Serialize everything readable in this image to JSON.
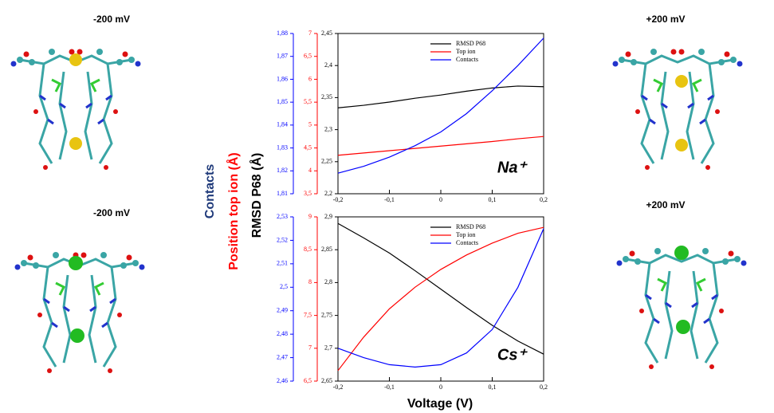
{
  "chart_data": [
    {
      "type": "line",
      "x": [
        -0.2,
        -0.15,
        -0.1,
        -0.05,
        0,
        0.05,
        0.1,
        0.15,
        0.2
      ],
      "xlim": [
        -0.2,
        0.2
      ],
      "xticks": [
        {
          "value": -0.2,
          "label": "-0,2"
        },
        {
          "value": -0.1,
          "label": "-0,1"
        },
        0,
        {
          "value": 0.1,
          "label": "0,1"
        },
        {
          "value": 0.2,
          "label": "0,2"
        }
      ],
      "ylim": [
        2.2,
        2.45
      ],
      "yticks": [
        {
          "value": 2.2,
          "label": "2,2"
        },
        {
          "value": 2.25,
          "label": "2,25"
        },
        {
          "value": 2.3,
          "label": "2,3"
        },
        {
          "value": 2.35,
          "label": "2,35"
        },
        {
          "value": 2.4,
          "label": "2,4"
        },
        {
          "value": 2.45,
          "label": "2,45"
        }
      ],
      "y2lim": [
        3.5,
        7
      ],
      "y2ticks": [
        {
          "value": 3.5,
          "label": "3,5"
        },
        4,
        {
          "value": 4.5,
          "label": "4,5"
        },
        5,
        {
          "value": 5.5,
          "label": "5,5"
        },
        6,
        {
          "value": 6.5,
          "label": "6,5"
        },
        7
      ],
      "y3lim": [
        1.81,
        1.88
      ],
      "y3ticks": [
        {
          "value": 1.81,
          "label": "1,81"
        },
        {
          "value": 1.82,
          "label": "1,82"
        },
        {
          "value": 1.83,
          "label": "1,83"
        },
        {
          "value": 1.84,
          "label": "1,84"
        },
        {
          "value": 1.85,
          "label": "1,85"
        },
        {
          "value": 1.86,
          "label": "1,86"
        },
        {
          "value": 1.87,
          "label": "1,87"
        },
        {
          "value": 1.88,
          "label": "1,88"
        }
      ],
      "annotation": "Na⁺",
      "series": [
        {
          "name": "RMSD P68",
          "color": "#000000",
          "axis": "y",
          "values": [
            2.334,
            2.338,
            2.343,
            2.349,
            2.354,
            2.36,
            2.365,
            2.368,
            2.367
          ]
        },
        {
          "name": "Top ion",
          "color": "#ff0000",
          "axis": "y2",
          "values": [
            4.34,
            4.39,
            4.44,
            4.49,
            4.54,
            4.59,
            4.64,
            4.7,
            4.75
          ]
        },
        {
          "name": "Contacts",
          "color": "#0000ff",
          "axis": "y3",
          "values": [
            1.819,
            1.822,
            1.826,
            1.831,
            1.837,
            1.845,
            1.855,
            1.866,
            1.878
          ]
        }
      ]
    },
    {
      "type": "line",
      "x": [
        -0.2,
        -0.15,
        -0.1,
        -0.05,
        0,
        0.05,
        0.1,
        0.15,
        0.2
      ],
      "xlim": [
        -0.2,
        0.2
      ],
      "xticks": [
        {
          "value": -0.2,
          "label": "-0,2"
        },
        {
          "value": -0.1,
          "label": "-0,1"
        },
        0,
        {
          "value": 0.1,
          "label": "0,1"
        },
        {
          "value": 0.2,
          "label": "0,2"
        }
      ],
      "ylim": [
        2.65,
        2.9
      ],
      "yticks": [
        {
          "value": 2.65,
          "label": "2,65"
        },
        {
          "value": 2.7,
          "label": "2,7"
        },
        {
          "value": 2.75,
          "label": "2,75"
        },
        {
          "value": 2.8,
          "label": "2,8"
        },
        {
          "value": 2.85,
          "label": "2,85"
        },
        {
          "value": 2.9,
          "label": "2,9"
        }
      ],
      "y2lim": [
        6.5,
        9
      ],
      "y2ticks": [
        {
          "value": 6.5,
          "label": "6,5"
        },
        7,
        {
          "value": 7.5,
          "label": "7,5"
        },
        8,
        {
          "value": 8.5,
          "label": "8,5"
        },
        9
      ],
      "y3lim": [
        2.46,
        2.53
      ],
      "y3ticks": [
        {
          "value": 2.46,
          "label": "2,46"
        },
        {
          "value": 2.47,
          "label": "2,47"
        },
        {
          "value": 2.48,
          "label": "2,48"
        },
        {
          "value": 2.49,
          "label": "2,49"
        },
        {
          "value": 2.5,
          "label": "2,5"
        },
        {
          "value": 2.51,
          "label": "2,51"
        },
        {
          "value": 2.52,
          "label": "2,52"
        },
        {
          "value": 2.53,
          "label": "2,53"
        }
      ],
      "annotation": "Cs⁺",
      "series": [
        {
          "name": "RMSD P68",
          "color": "#000000",
          "axis": "y",
          "values": [
            2.89,
            2.868,
            2.845,
            2.818,
            2.79,
            2.762,
            2.735,
            2.711,
            2.691
          ]
        },
        {
          "name": "Top ion",
          "color": "#ff0000",
          "axis": "y2",
          "values": [
            6.66,
            7.17,
            7.6,
            7.93,
            8.2,
            8.42,
            8.6,
            8.75,
            8.84
          ]
        },
        {
          "name": "Contacts",
          "color": "#0000ff",
          "axis": "y3",
          "values": [
            2.474,
            2.47,
            2.467,
            2.466,
            2.467,
            2.472,
            2.482,
            2.5,
            2.525
          ]
        }
      ]
    }
  ],
  "labels": {
    "y_axis_titles": [
      "Contacts",
      "Position top ion (Å)",
      "RMSD P68  (Å)"
    ],
    "x_axis_title": "Voltage (V)",
    "panels": [
      "-200 mV",
      "+200 mV",
      "-200 mV",
      "+200 mV"
    ]
  }
}
